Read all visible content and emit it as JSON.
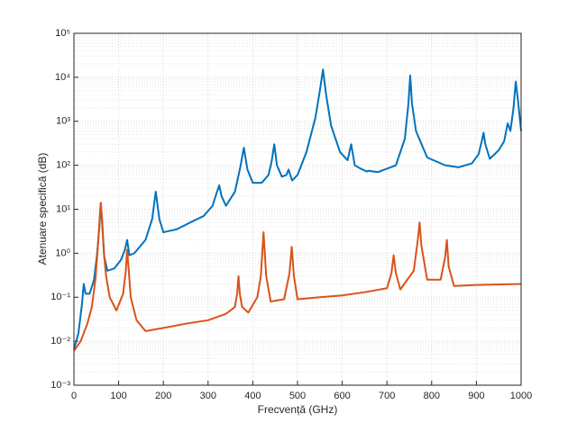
{
  "chart_data": {
    "type": "line",
    "xlabel": "Frecvență (GHz)",
    "ylabel": "Atenuare specifică (dB)",
    "xlim": [
      0,
      1000
    ],
    "xticks": [
      0,
      100,
      200,
      300,
      400,
      500,
      600,
      700,
      800,
      900,
      1000
    ],
    "ylim": [
      0.001,
      100000
    ],
    "yticks": [
      {
        "value": 0.001,
        "label": "10⁻³"
      },
      {
        "value": 0.01,
        "label": "10⁻²"
      },
      {
        "value": 0.1,
        "label": "10⁻¹"
      },
      {
        "value": 1,
        "label": "10⁰"
      },
      {
        "value": 10,
        "label": "10¹"
      },
      {
        "value": 100,
        "label": "10²"
      },
      {
        "value": 1000,
        "label": "10³"
      },
      {
        "value": 10000,
        "label": "10⁴"
      },
      {
        "value": 100000,
        "label": "10⁵"
      }
    ],
    "log_y": true,
    "grid": true,
    "series": [
      {
        "color": "#0072BD",
        "x": [
          0,
          10,
          18,
          22,
          26,
          35,
          45,
          52,
          57,
          60,
          63,
          68,
          75,
          90,
          105,
          114,
          119,
          124,
          135,
          160,
          175,
          183,
          191,
          200,
          230,
          260,
          290,
          310,
          320,
          325,
          330,
          340,
          360,
          372,
          380,
          388,
          400,
          420,
          435,
          442,
          448,
          454,
          465,
          475,
          480,
          488,
          500,
          520,
          540,
          550,
          557,
          564,
          575,
          595,
          612,
          620,
          628,
          640,
          655,
          658,
          680,
          720,
          740,
          748,
          752,
          756,
          765,
          790,
          830,
          860,
          890,
          905,
          912,
          916,
          920,
          930,
          950,
          962,
          970,
          976,
          983,
          988,
          993,
          1000
        ],
        "values": [
          0.0065,
          0.015,
          0.07,
          0.2,
          0.12,
          0.12,
          0.25,
          1.0,
          4.0,
          14,
          5.0,
          0.8,
          0.4,
          0.45,
          0.7,
          1.2,
          2.0,
          0.9,
          1.0,
          2.0,
          6,
          25,
          6,
          3,
          3.5,
          5,
          7,
          12,
          25,
          35,
          20,
          12,
          25,
          90,
          250,
          80,
          40,
          40,
          60,
          120,
          300,
          100,
          55,
          60,
          80,
          45,
          60,
          200,
          1200,
          5000,
          15000,
          4000,
          800,
          200,
          130,
          300,
          100,
          85,
          72,
          75,
          70,
          100,
          400,
          2500,
          11000,
          2500,
          600,
          150,
          100,
          90,
          110,
          180,
          350,
          550,
          300,
          140,
          220,
          350,
          900,
          600,
          2000,
          8000,
          3000,
          600
        ]
      },
      {
        "color": "#D95319",
        "x": [
          0,
          15,
          30,
          40,
          48,
          53,
          57,
          60,
          63,
          67,
          72,
          80,
          95,
          110,
          116,
          119,
          122,
          127,
          140,
          160,
          200,
          250,
          300,
          340,
          360,
          365,
          368,
          371,
          376,
          390,
          410,
          418,
          424,
          430,
          440,
          470,
          482,
          487,
          492,
          500,
          550,
          600,
          650,
          700,
          710,
          715,
          720,
          730,
          760,
          769,
          773,
          777,
          790,
          820,
          830,
          834,
          838,
          850,
          900,
          1000
        ],
        "values": [
          0.006,
          0.01,
          0.025,
          0.06,
          0.25,
          1.2,
          5.0,
          14,
          6.0,
          1.0,
          0.3,
          0.1,
          0.05,
          0.12,
          0.4,
          1.2,
          0.5,
          0.1,
          0.03,
          0.017,
          0.02,
          0.025,
          0.03,
          0.042,
          0.06,
          0.12,
          0.3,
          0.12,
          0.06,
          0.045,
          0.1,
          0.3,
          3.0,
          0.3,
          0.08,
          0.09,
          0.35,
          1.4,
          0.3,
          0.09,
          0.1,
          0.11,
          0.13,
          0.16,
          0.35,
          0.9,
          0.35,
          0.15,
          0.4,
          2.0,
          5.0,
          1.5,
          0.25,
          0.25,
          0.8,
          2.0,
          0.5,
          0.18,
          0.19,
          0.2
        ]
      }
    ]
  }
}
